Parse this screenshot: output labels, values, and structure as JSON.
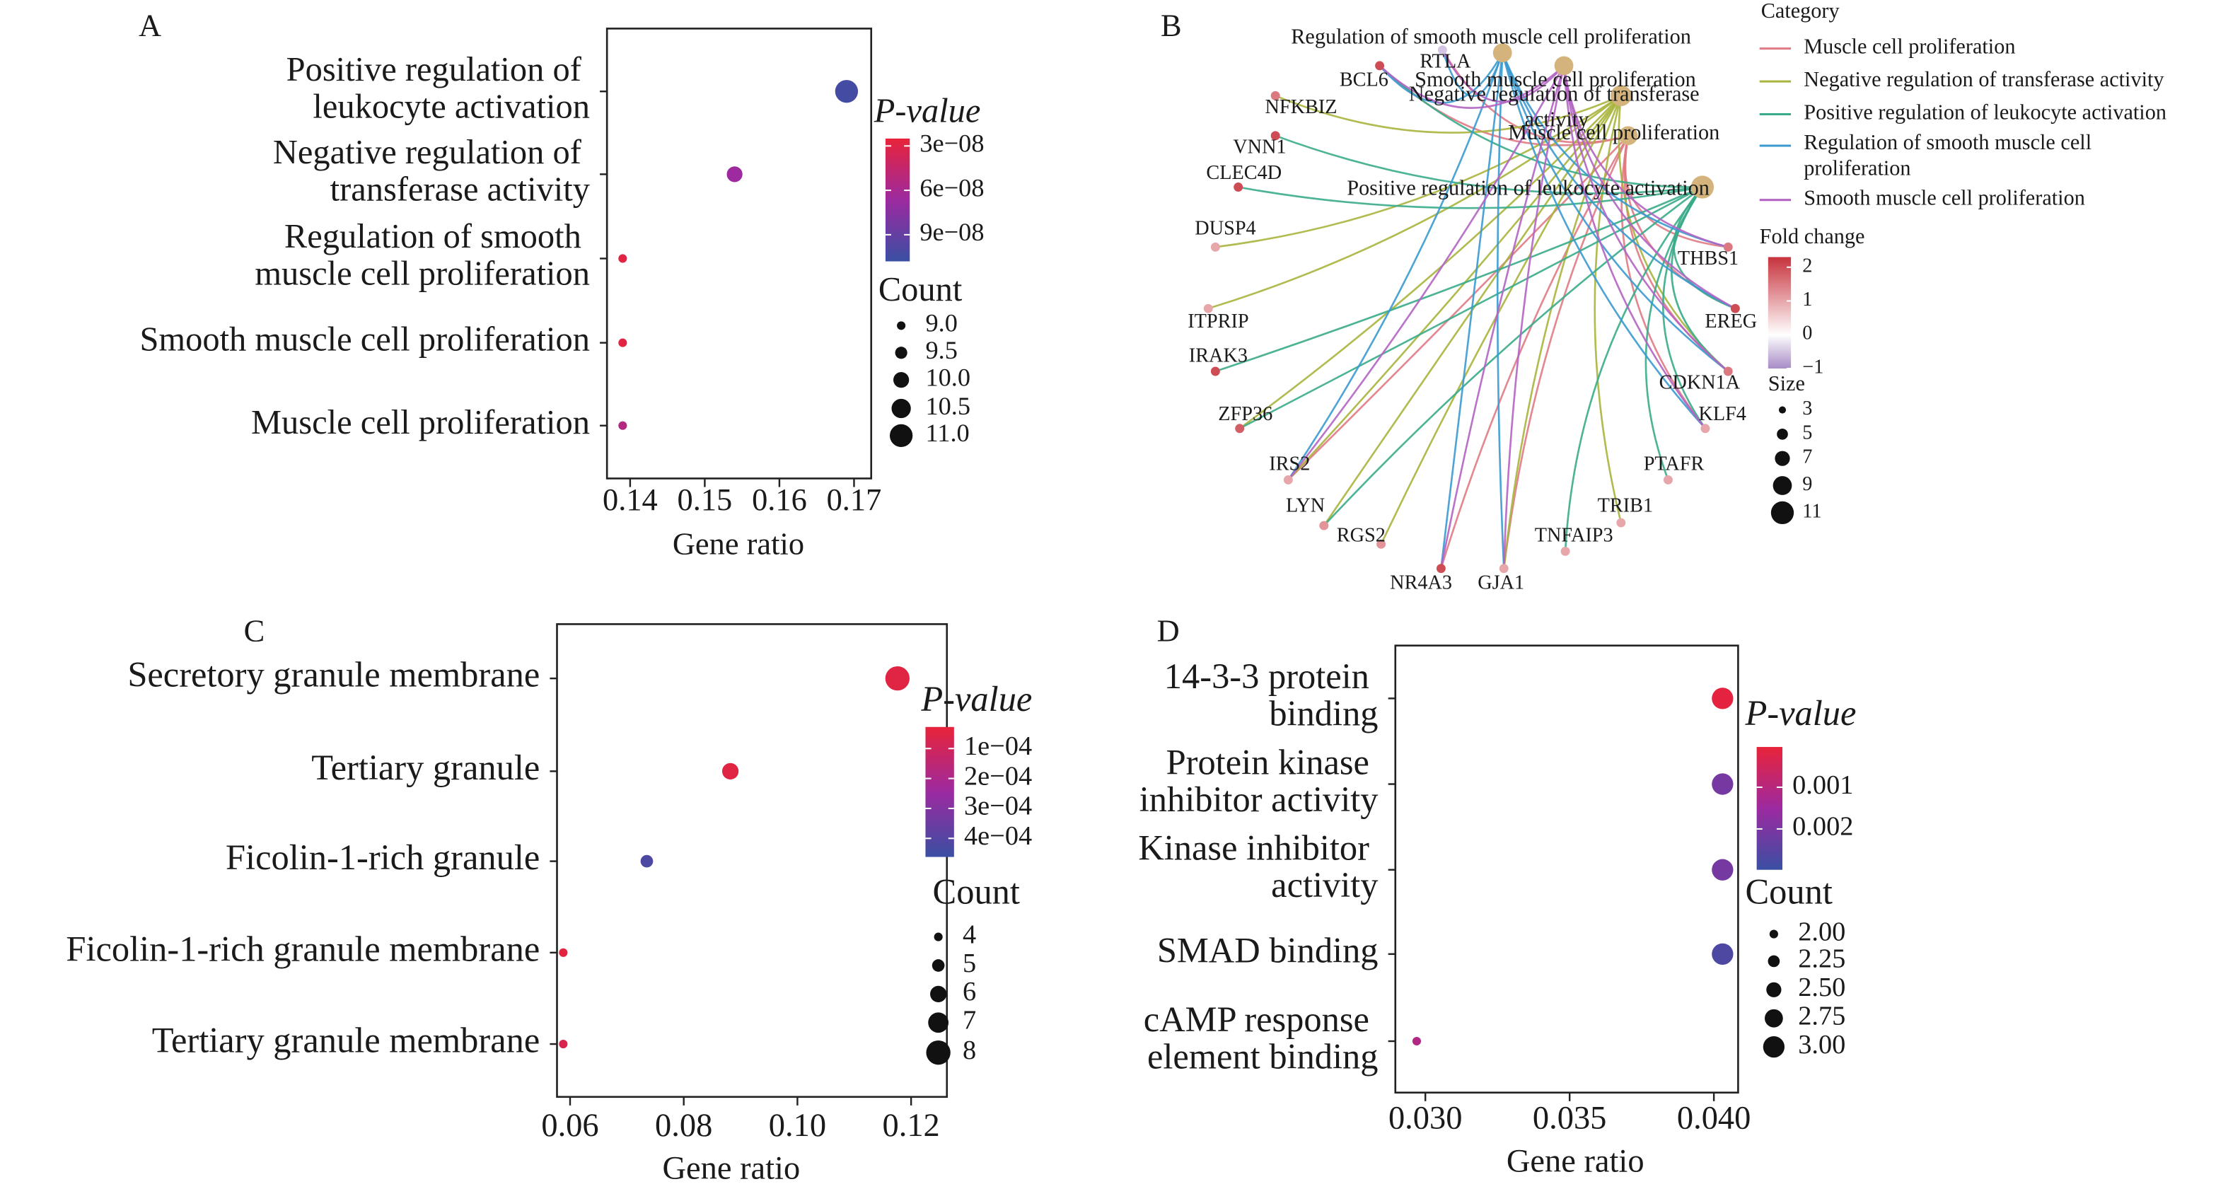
{
  "chart_data": [
    {
      "panel": "A",
      "type": "dot",
      "categories": [
        "Positive regulation of leukocyte activation",
        "Negative regulation of transferase activity",
        "Regulation of smooth muscle cell proliferation",
        "Smooth muscle cell proliferation",
        "Muscle cell proliferation"
      ],
      "values": [
        0.169,
        0.154,
        0.139,
        0.139,
        0.139
      ],
      "counts": [
        11,
        10,
        9,
        9,
        9
      ],
      "pvalues": [
        1.04e-07,
        6.6e-08,
        2.9e-08,
        2.9e-08,
        5.4e-08
      ],
      "xlabel": "Gene ratio",
      "xlim": [
        0.1369,
        0.1723
      ],
      "xticks": [
        0.14,
        0.15,
        0.16,
        0.17
      ],
      "colorbar_title": "P-value",
      "clim": [
        2.5e-08,
        1.08e-07
      ],
      "cticks": [
        {
          "value": 3e-08,
          "label": "3e−08"
        },
        {
          "value": 6e-08,
          "label": "6e−08"
        },
        {
          "value": 9e-08,
          "label": "9e−08"
        }
      ],
      "colormap": [
        "#e8233a",
        "#9c2aa0",
        "#3a4fa3"
      ],
      "count_title": "Count",
      "count_ticks": [
        {
          "value": 9,
          "label": "9.0"
        },
        9.5,
        {
          "value": 10,
          "label": "10.0"
        },
        10.5,
        {
          "value": 11,
          "label": "11.0"
        }
      ]
    },
    {
      "panel": "B",
      "type": "network",
      "category_title": "Category",
      "category_node_color": "#d4b47c",
      "categories": [
        {
          "name": "Muscle cell proliferation",
          "color": "#e07a84",
          "size": 9,
          "genes": [
            "RTLA",
            "BCL6",
            "IRS2",
            "NR4A3",
            "GJA1",
            "KLF4",
            "CDKN1A",
            "EREG",
            "THBS1"
          ]
        },
        {
          "name": "Negative regulation of transferase activity",
          "color": "#a9b43c",
          "size": 10,
          "genes": [
            "NFKBIZ",
            "DUSP4",
            "ITPRIP",
            "IRS2",
            "LYN",
            "RGS2",
            "TRIB1",
            "CDKN1A",
            "ZFP36",
            "GJA1"
          ]
        },
        {
          "name": "Positive regulation of leukocyte activation",
          "color": "#3aab8a",
          "size": 11,
          "genes": [
            "BCL6",
            "VNN1",
            "CLEC4D",
            "IRAK3",
            "ZFP36",
            "LYN",
            "TNFAIP3",
            "PTAFR",
            "KLF4",
            "CDKN1A",
            "EREG"
          ]
        },
        {
          "name": "Regulation of smooth muscle cell proliferation",
          "color": "#3a9ad0",
          "size": 9,
          "genes": [
            "RTLA",
            "BCL6",
            "IRS2",
            "NR4A3",
            "GJA1",
            "KLF4",
            "CDKN1A",
            "EREG",
            "THBS1"
          ]
        },
        {
          "name": "Smooth muscle cell proliferation",
          "color": "#b464c4",
          "size": 9,
          "genes": [
            "RTLA",
            "BCL6",
            "IRS2",
            "NR4A3",
            "GJA1",
            "KLF4",
            "CDKN1A",
            "EREG",
            "THBS1"
          ]
        }
      ],
      "genes": [
        {
          "name": "RTLA",
          "fold_change": -0.5
        },
        {
          "name": "BCL6",
          "fold_change": 2
        },
        {
          "name": "NFKBIZ",
          "fold_change": 1.5
        },
        {
          "name": "VNN1",
          "fold_change": 2
        },
        {
          "name": "CLEC4D",
          "fold_change": 2
        },
        {
          "name": "DUSP4",
          "fold_change": 1
        },
        {
          "name": "ITPRIP",
          "fold_change": 1
        },
        {
          "name": "IRAK3",
          "fold_change": 2
        },
        {
          "name": "ZFP36",
          "fold_change": 1.8
        },
        {
          "name": "IRS2",
          "fold_change": 1
        },
        {
          "name": "LYN",
          "fold_change": 1.2
        },
        {
          "name": "RGS2",
          "fold_change": 1.2
        },
        {
          "name": "NR4A3",
          "fold_change": 2
        },
        {
          "name": "GJA1",
          "fold_change": 1
        },
        {
          "name": "TNFAIP3",
          "fold_change": 1
        },
        {
          "name": "TRIB1",
          "fold_change": 1
        },
        {
          "name": "PTAFR",
          "fold_change": 1
        },
        {
          "name": "KLF4",
          "fold_change": 1
        },
        {
          "name": "CDKN1A",
          "fold_change": 1.5
        },
        {
          "name": "EREG",
          "fold_change": 2
        },
        {
          "name": "THBS1",
          "fold_change": 1.5
        }
      ],
      "fold_title": "Fold change",
      "fold_lim": [
        -1,
        2.3
      ],
      "fold_ticks": [
        2,
        1,
        0,
        {
          "value": -1,
          "label": "−1"
        }
      ],
      "fold_colormap": [
        "#a78bc6",
        "#ffffff",
        "#c7323c"
      ],
      "size_title": "Size",
      "size_ticks": [
        3,
        5,
        7,
        9,
        11
      ]
    },
    {
      "panel": "C",
      "type": "dot",
      "categories": [
        "Secretory granule membrane",
        "Tertiary granule",
        "Ficolin-1-rich granule",
        "Ficolin-1-rich granule membrane",
        "Tertiary granule membrane"
      ],
      "values": [
        0.1176,
        0.0882,
        0.0735,
        0.0588,
        0.0588
      ],
      "counts": [
        8,
        6,
        5,
        4,
        4
      ],
      "pvalues": [
        5e-05,
        5e-05,
        0.00042,
        4e-05,
        7e-05
      ],
      "xlabel": "Gene ratio",
      "xlim": [
        0.0577,
        0.1263
      ],
      "xticks": [
        0.06,
        0.08,
        {
          "value": 0.1,
          "label": "0.10"
        },
        0.12
      ],
      "colorbar_title": "P-value",
      "clim": [
        2.8e-05,
        0.000462
      ],
      "cticks": [
        {
          "value": 0.0001,
          "label": "1e−04"
        },
        {
          "value": 0.0002,
          "label": "2e−04"
        },
        {
          "value": 0.0003,
          "label": "3e−04"
        },
        {
          "value": 0.0004,
          "label": "4e−04"
        }
      ],
      "colormap": [
        "#e8233a",
        "#9c2aa0",
        "#3a4fa3"
      ],
      "count_title": "Count",
      "count_ticks": [
        4,
        5,
        6,
        7,
        8
      ]
    },
    {
      "panel": "D",
      "type": "dot",
      "categories": [
        "14-3-3 protein binding",
        "Protein kinase inhibitor activity",
        "Kinase inhibitor activity",
        "SMAD binding",
        "cAMP response element binding"
      ],
      "values": [
        0.0403,
        0.0403,
        0.0403,
        0.0403,
        0.0297
      ],
      "counts": [
        3,
        3,
        3,
        3,
        2
      ],
      "pvalues": [
        0.00012,
        0.0021,
        0.0021,
        0.0027,
        0.0011
      ],
      "xlabel": "Gene ratio",
      "xlim": [
        0.02896,
        0.04084
      ],
      "xticks": [
        {
          "value": 0.03,
          "label": "0.030"
        },
        0.035,
        {
          "value": 0.04,
          "label": "0.040"
        }
      ],
      "colorbar_title": "P-value",
      "clim": [
        3.4e-05,
        0.00298
      ],
      "cticks": [
        0.001,
        0.002
      ],
      "colormap": [
        "#e8233a",
        "#9c2aa0",
        "#3a4fa3"
      ],
      "count_title": "Count",
      "count_ticks": [
        {
          "value": 2,
          "label": "2.00"
        },
        2.25,
        {
          "value": 2.5,
          "label": "2.50"
        },
        2.75,
        {
          "value": 3,
          "label": "3.00"
        }
      ]
    }
  ]
}
